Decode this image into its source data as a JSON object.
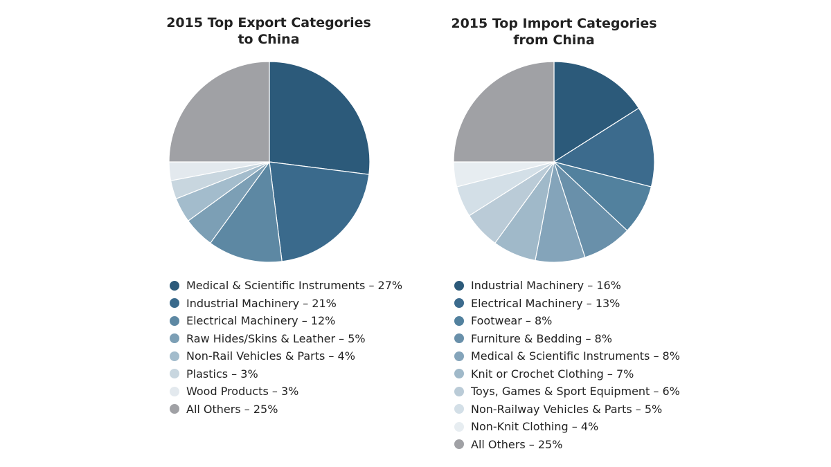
{
  "chart_data": [
    {
      "type": "pie",
      "title_line1": "2015 Top Export Categories",
      "title_line2": "to China",
      "legend_placement": "bottom",
      "slices": [
        {
          "label": "Medical & Scientific Instruments – 27%",
          "value": 27,
          "color": "#2c5a7a"
        },
        {
          "label": "Industrial Machinery – 21%",
          "value": 21,
          "color": "#3a6a8c"
        },
        {
          "label": "Electrical Machinery – 12%",
          "value": 12,
          "color": "#5d88a3"
        },
        {
          "label": "Raw Hides/Skins & Leather – 5%",
          "value": 5,
          "color": "#7c9fb5"
        },
        {
          "label": "Non-Rail Vehicles & Parts – 4%",
          "value": 4,
          "color": "#a3bccc"
        },
        {
          "label": "Plastics – 3%",
          "value": 3,
          "color": "#c8d6df"
        },
        {
          "label": "Wood Products – 3%",
          "value": 3,
          "color": "#e3e9ee"
        },
        {
          "label": "All Others – 25%",
          "value": 25,
          "color": "#a0a1a5"
        }
      ]
    },
    {
      "type": "pie",
      "title_line1": "2015 Top Import Categories",
      "title_line2": "from China",
      "legend_placement": "bottom",
      "slices": [
        {
          "label": "Industrial Machinery – 16%",
          "value": 16,
          "color": "#2c5a7a"
        },
        {
          "label": "Electrical Machinery – 13%",
          "value": 13,
          "color": "#3c6b8d"
        },
        {
          "label": "Footwear – 8%",
          "value": 8,
          "color": "#52819e"
        },
        {
          "label": "Furniture & Bedding – 8%",
          "value": 8,
          "color": "#6990aa"
        },
        {
          "label": "Medical & Scientific Instruments – 8%",
          "value": 8,
          "color": "#84a4ba"
        },
        {
          "label": "Knit or Crochet Clothing – 7%",
          "value": 7,
          "color": "#a0b9c9"
        },
        {
          "label": "Toys, Games & Sport Equipment – 6%",
          "value": 6,
          "color": "#bacbd7"
        },
        {
          "label": "Non-Railway Vehicles & Parts – 5%",
          "value": 5,
          "color": "#d3dfe7"
        },
        {
          "label": "Non-Knit Clothing – 4%",
          "value": 4,
          "color": "#e7edf1"
        },
        {
          "label": "All Others – 25%",
          "value": 25,
          "color": "#a0a1a5"
        }
      ]
    }
  ]
}
